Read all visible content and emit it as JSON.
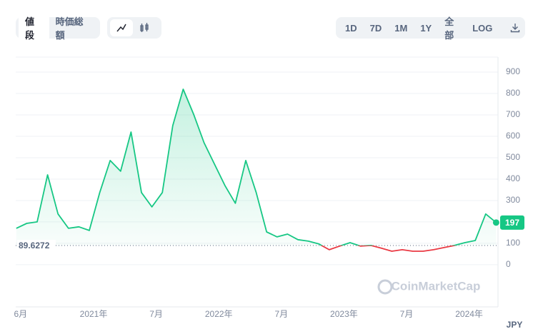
{
  "controls": {
    "tabs": [
      "値段",
      "時価総額"
    ],
    "ranges": [
      "1D",
      "7D",
      "1M",
      "1Y",
      "全部"
    ],
    "log": "LOG"
  },
  "watermark": "CoinMarketCap",
  "chart_data": {
    "type": "line",
    "categories": [
      "6月",
      null,
      null,
      null,
      null,
      null,
      null,
      "2021年",
      null,
      null,
      null,
      null,
      null,
      "7月",
      null,
      null,
      null,
      null,
      null,
      "2022年",
      null,
      null,
      null,
      null,
      null,
      "7月",
      null,
      null,
      null,
      null,
      null,
      "2023年",
      null,
      null,
      null,
      null,
      null,
      "7月",
      null,
      null,
      null,
      null,
      null,
      "2024年",
      null,
      null,
      null
    ],
    "values": [
      170,
      193,
      200,
      420,
      237,
      170,
      177,
      160,
      337,
      487,
      437,
      620,
      337,
      270,
      337,
      650,
      820,
      703,
      570,
      470,
      370,
      287,
      487,
      337,
      153,
      130,
      143,
      117,
      110,
      97,
      70,
      87,
      103,
      87,
      90,
      77,
      63,
      70,
      63,
      63,
      70,
      80,
      90,
      103,
      113,
      237,
      197
    ],
    "baseline": 89.6272,
    "color_up": "#16c784",
    "color_down": "#ea3943",
    "ylim": [
      -197,
      970
    ],
    "yticks": [
      0,
      100,
      200,
      300,
      400,
      500,
      600,
      700,
      800,
      900
    ],
    "currency": "JPY",
    "grid": true
  }
}
